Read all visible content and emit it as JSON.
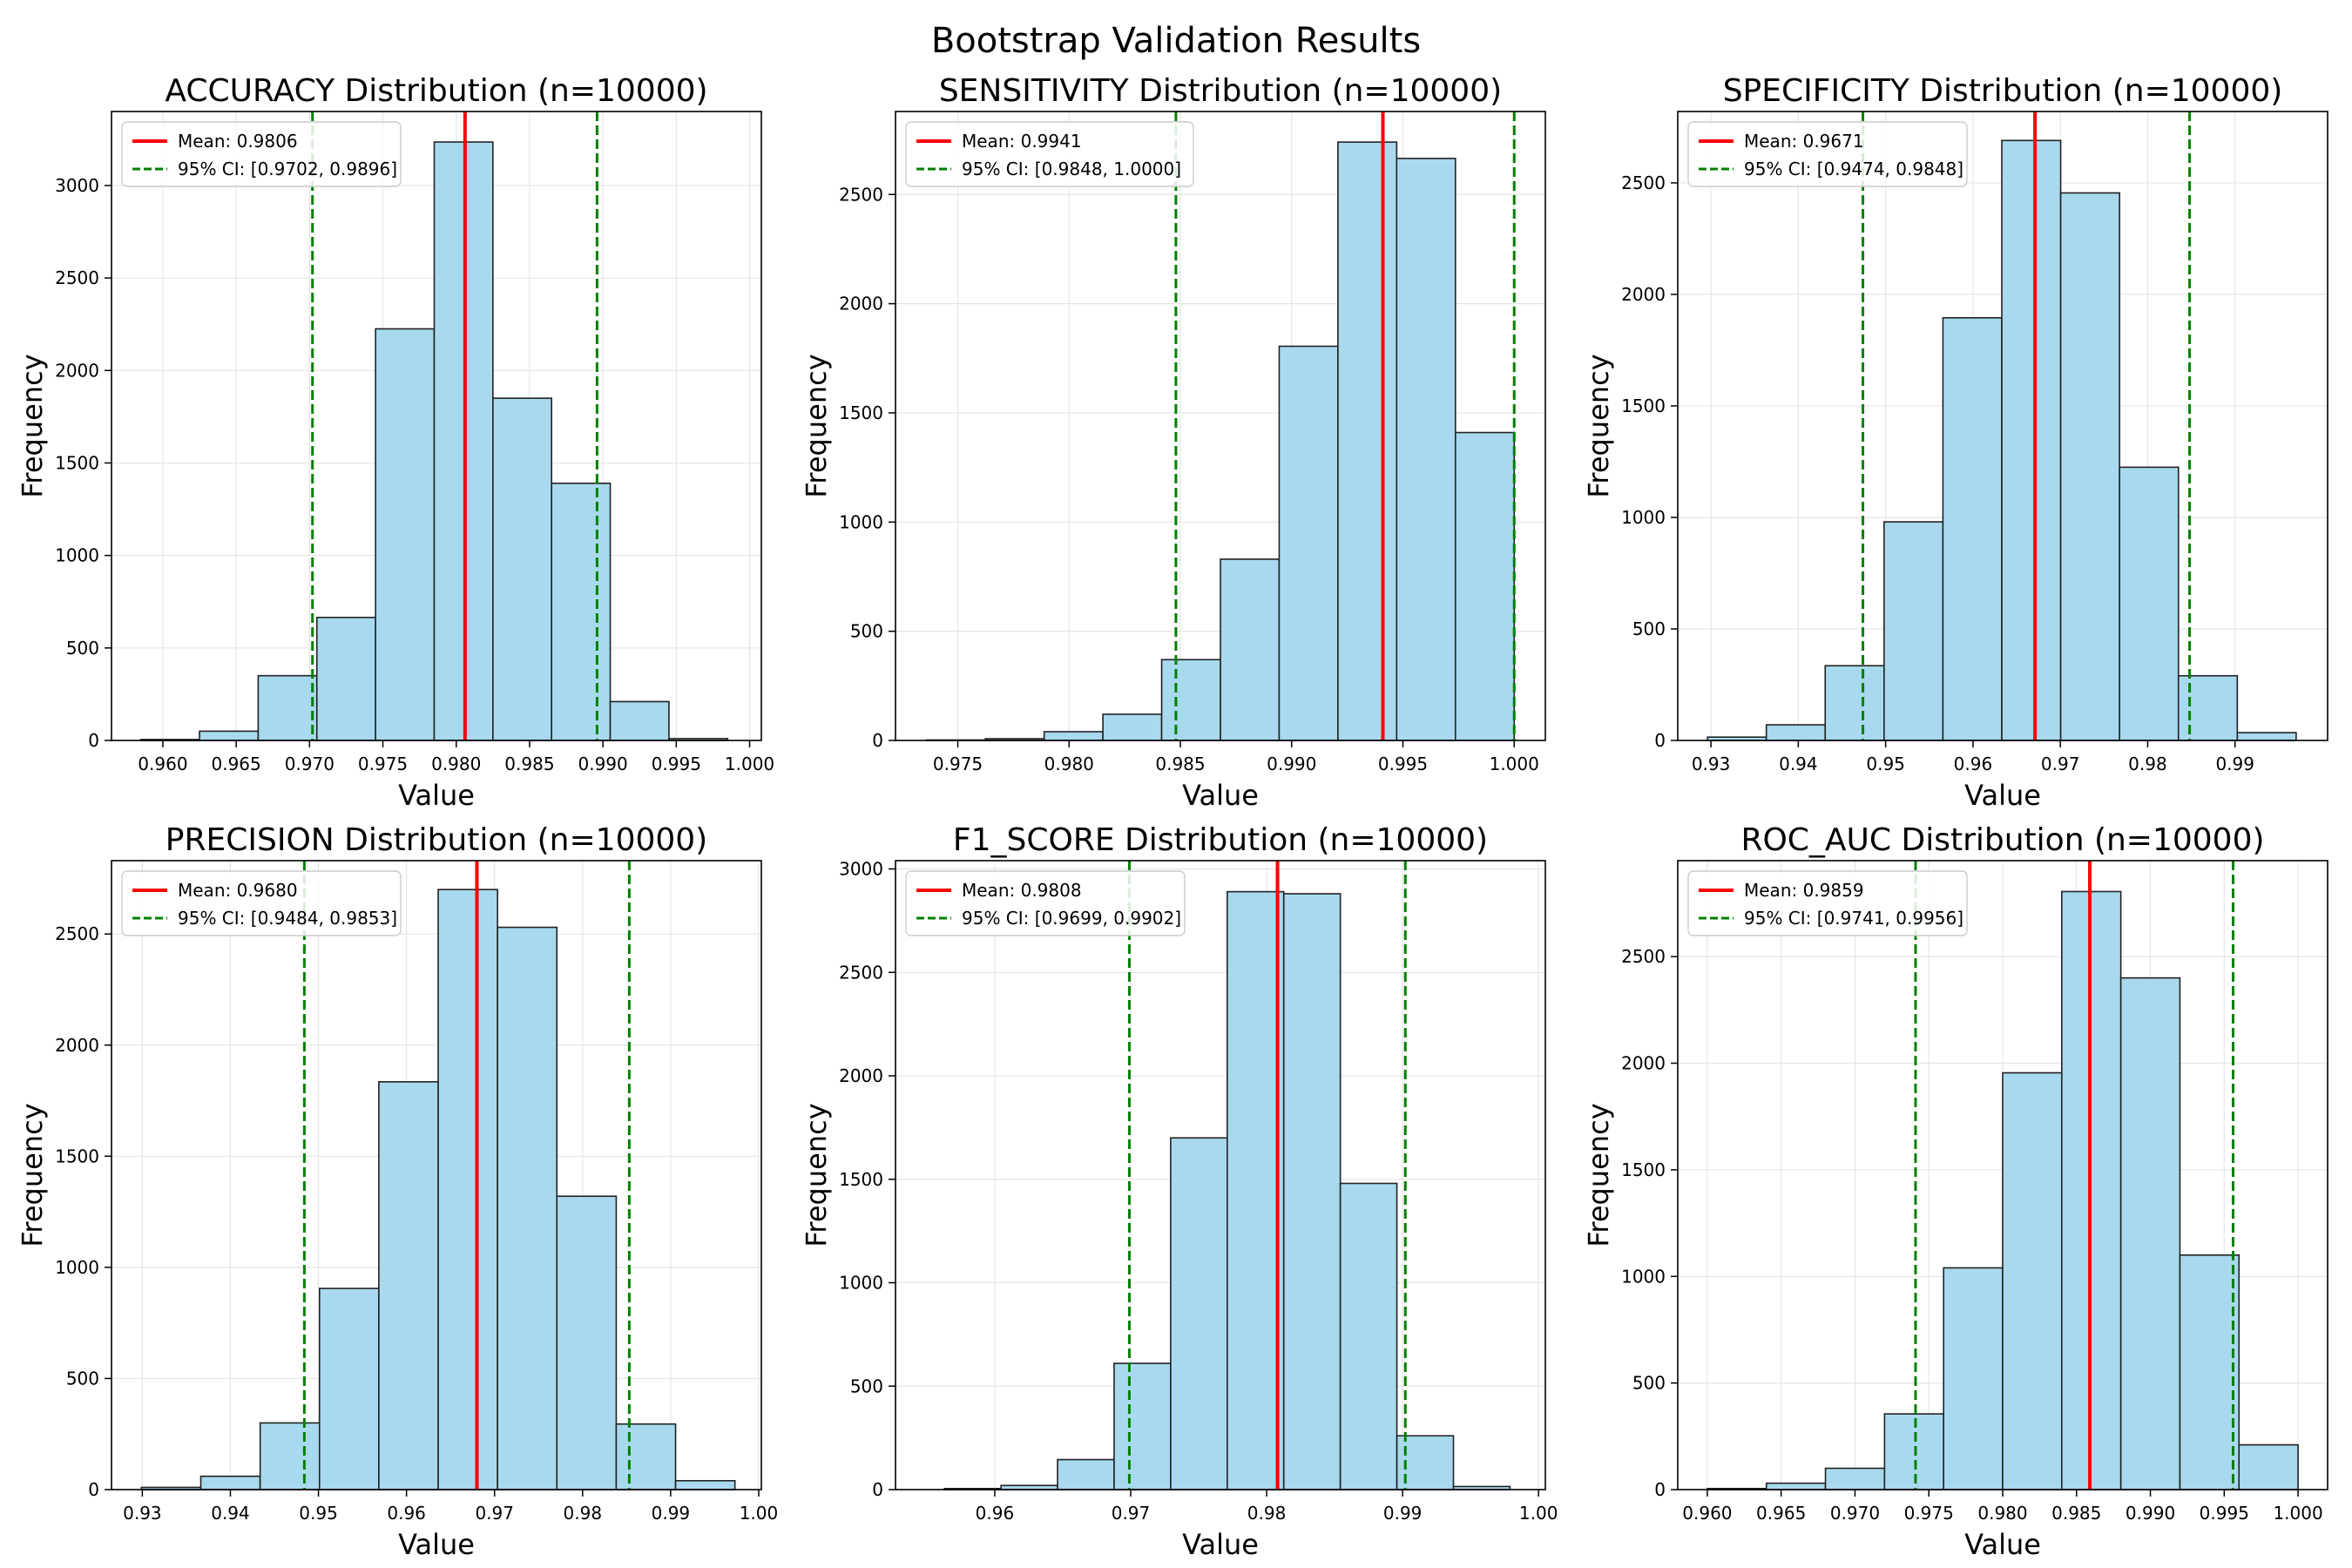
{
  "figure": {
    "title": "Bootstrap Validation Results"
  },
  "colors": {
    "bar_fill": "#a9d9ee",
    "bar_edge": "#222222",
    "mean_line": "#ff0000",
    "ci_line": "#008000",
    "grid": "#e5e5e5"
  },
  "chart_data": [
    {
      "type": "bar",
      "title": "ACCURACY Distribution (n=10000)",
      "xlabel": "Value",
      "ylabel": "Frequency",
      "xlim": [
        0.9565,
        1.0008
      ],
      "ylim": [
        0,
        3400
      ],
      "xticks": [
        0.96,
        0.965,
        0.97,
        0.975,
        0.98,
        0.985,
        0.99,
        0.995,
        1.0
      ],
      "xtick_labels": [
        "0.960",
        "0.965",
        "0.970",
        "0.975",
        "0.980",
        "0.985",
        "0.990",
        "0.995",
        "1.000"
      ],
      "yticks": [
        0,
        500,
        1000,
        1500,
        2000,
        2500,
        3000
      ],
      "bin_edges": [
        0.9585,
        0.9625,
        0.9665,
        0.9705,
        0.9745,
        0.9785,
        0.9825,
        0.9865,
        0.9905,
        0.9945,
        0.9985
      ],
      "counts": [
        5,
        50,
        350,
        665,
        2225,
        3235,
        1850,
        1390,
        210,
        10
      ],
      "mean": 0.9806,
      "ci": [
        0.9702,
        0.9896
      ],
      "legend": {
        "mean_label": "Mean: 0.9806",
        "ci_label": "95% CI: [0.9702, 0.9896]",
        "placement": "upper-left"
      },
      "grid": true
    },
    {
      "type": "bar",
      "title": "SENSITIVITY Distribution (n=10000)",
      "xlabel": "Value",
      "ylabel": "Frequency",
      "xlim": [
        0.9722,
        1.0014
      ],
      "ylim": [
        0,
        2880
      ],
      "xticks": [
        0.975,
        0.98,
        0.985,
        0.99,
        0.995,
        1.0
      ],
      "xtick_labels": [
        "0.975",
        "0.980",
        "0.985",
        "0.990",
        "0.995",
        "1.000"
      ],
      "yticks": [
        0,
        500,
        1000,
        1500,
        2000,
        2500
      ],
      "bin_edges": [
        0.9736,
        0.97624,
        0.97888,
        0.98152,
        0.98416,
        0.9868,
        0.98944,
        0.99208,
        0.99472,
        0.99736,
        1.0
      ],
      "counts": [
        2,
        8,
        40,
        120,
        370,
        830,
        1805,
        2740,
        2665,
        1410
      ],
      "mean": 0.9941,
      "ci": [
        0.9848,
        1.0
      ],
      "legend": {
        "mean_label": "Mean: 0.9941",
        "ci_label": "95% CI: [0.9848, 1.0000]",
        "placement": "upper-left"
      },
      "grid": true
    },
    {
      "type": "bar",
      "title": "SPECIFICITY Distribution (n=10000)",
      "xlabel": "Value",
      "ylabel": "Frequency",
      "xlim": [
        0.9262,
        1.0006
      ],
      "ylim": [
        0,
        2820
      ],
      "xticks": [
        0.93,
        0.94,
        0.95,
        0.96,
        0.97,
        0.98,
        0.99
      ],
      "xtick_labels": [
        "0.93",
        "0.94",
        "0.95",
        "0.96",
        "0.97",
        "0.98",
        "0.99"
      ],
      "yticks": [
        0,
        500,
        1000,
        1500,
        2000,
        2500
      ],
      "bin_edges": [
        0.9296,
        0.93634,
        0.94308,
        0.94982,
        0.95656,
        0.9633,
        0.97004,
        0.97678,
        0.98352,
        0.99026,
        0.997
      ],
      "counts": [
        15,
        70,
        335,
        980,
        1895,
        2690,
        2455,
        1225,
        290,
        35
      ],
      "mean": 0.9671,
      "ci": [
        0.9474,
        0.9848
      ],
      "legend": {
        "mean_label": "Mean: 0.9671",
        "ci_label": "95% CI: [0.9474, 0.9848]",
        "placement": "upper-left"
      },
      "grid": true
    },
    {
      "type": "bar",
      "title": "PRECISION Distribution (n=10000)",
      "xlabel": "Value",
      "ylabel": "Frequency",
      "xlim": [
        0.9265,
        1.0003
      ],
      "ylim": [
        0,
        2830
      ],
      "xticks": [
        0.93,
        0.94,
        0.95,
        0.96,
        0.97,
        0.98,
        0.99,
        1.0
      ],
      "xtick_labels": [
        "0.93",
        "0.94",
        "0.95",
        "0.96",
        "0.97",
        "0.98",
        "0.99",
        "1.00"
      ],
      "yticks": [
        0,
        500,
        1000,
        1500,
        2000,
        2500
      ],
      "bin_edges": [
        0.9299,
        0.93664,
        0.94338,
        0.95012,
        0.95686,
        0.9636,
        0.97034,
        0.97708,
        0.98382,
        0.99056,
        0.9973
      ],
      "counts": [
        10,
        60,
        300,
        905,
        1835,
        2700,
        2530,
        1320,
        295,
        40
      ],
      "mean": 0.968,
      "ci": [
        0.9484,
        0.9853
      ],
      "legend": {
        "mean_label": "Mean: 0.9680",
        "ci_label": "95% CI: [0.9484, 0.9853]",
        "placement": "upper-left"
      },
      "grid": true
    },
    {
      "type": "bar",
      "title": "F1_SCORE Distribution (n=10000)",
      "xlabel": "Value",
      "ylabel": "Frequency",
      "xlim": [
        0.9527,
        1.0005
      ],
      "ylim": [
        0,
        3040
      ],
      "xticks": [
        0.96,
        0.97,
        0.98,
        0.99,
        1.0
      ],
      "xtick_labels": [
        "0.96",
        "0.97",
        "0.98",
        "0.99",
        "1.00"
      ],
      "yticks": [
        0,
        500,
        1000,
        1500,
        2000,
        2500,
        3000
      ],
      "bin_edges": [
        0.9563,
        0.96046,
        0.96462,
        0.96878,
        0.97294,
        0.9771,
        0.98126,
        0.98542,
        0.98958,
        0.99374,
        0.9979
      ],
      "counts": [
        5,
        20,
        145,
        610,
        1700,
        2890,
        2880,
        1480,
        260,
        15
      ],
      "mean": 0.9808,
      "ci": [
        0.9699,
        0.9902
      ],
      "legend": {
        "mean_label": "Mean: 0.9808",
        "ci_label": "95% CI: [0.9699, 0.9902]",
        "placement": "upper-left"
      },
      "grid": true
    },
    {
      "type": "bar",
      "title": "ROC_AUC Distribution (n=10000)",
      "xlabel": "Value",
      "ylabel": "Frequency",
      "xlim": [
        0.958,
        1.002
      ],
      "ylim": [
        0,
        2950
      ],
      "xticks": [
        0.96,
        0.965,
        0.97,
        0.975,
        0.98,
        0.985,
        0.99,
        0.995,
        1.0
      ],
      "xtick_labels": [
        "0.960",
        "0.965",
        "0.970",
        "0.975",
        "0.980",
        "0.985",
        "0.990",
        "0.995",
        "1.000"
      ],
      "yticks": [
        0,
        500,
        1000,
        1500,
        2000,
        2500
      ],
      "bin_edges": [
        0.96,
        0.964,
        0.968,
        0.972,
        0.976,
        0.98,
        0.984,
        0.988,
        0.992,
        0.996,
        1.0
      ],
      "counts": [
        5,
        30,
        100,
        355,
        1040,
        1955,
        2805,
        2400,
        1100,
        210
      ],
      "mean": 0.9859,
      "ci": [
        0.9741,
        0.9956
      ],
      "legend": {
        "mean_label": "Mean: 0.9859",
        "ci_label": "95% CI: [0.9741, 0.9956]",
        "placement": "upper-left"
      },
      "grid": true
    }
  ]
}
